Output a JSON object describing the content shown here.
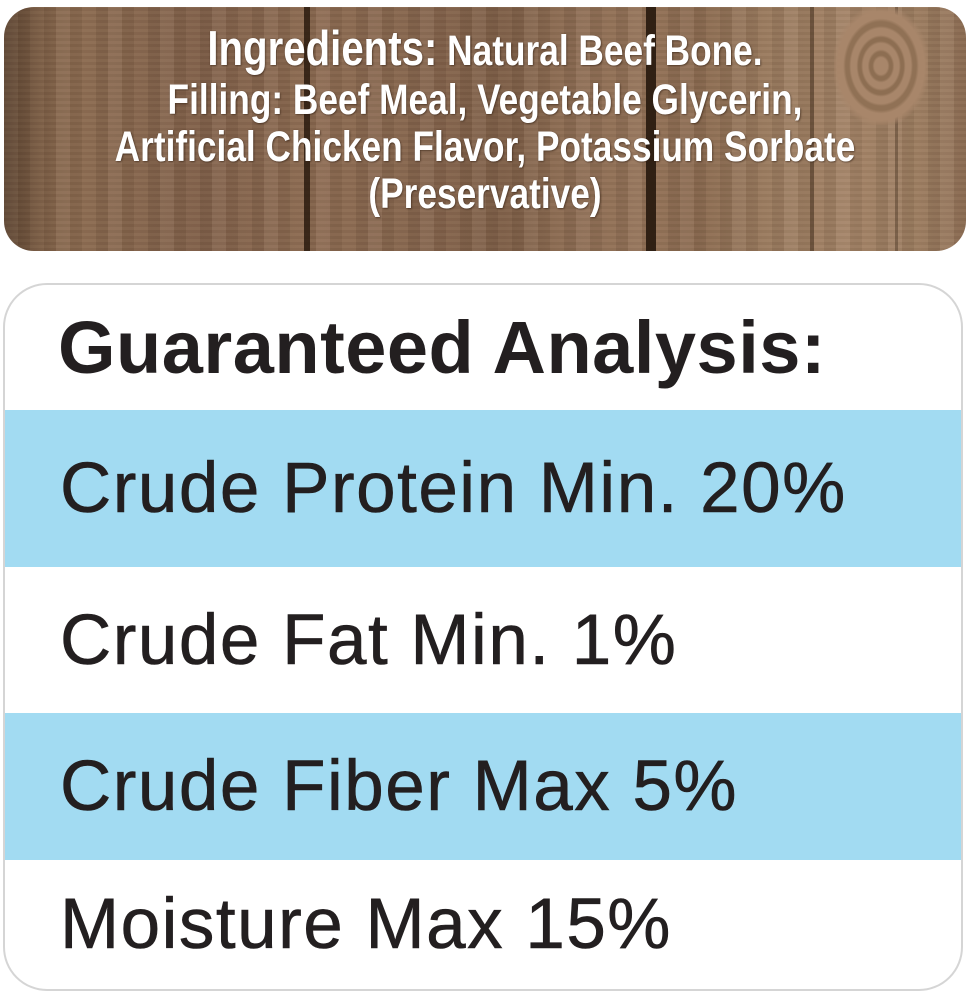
{
  "ingredients_panel": {
    "line1_label": "Ingredients:",
    "line1_text": "Natural Beef Bone.",
    "line2": "Filling: Beef Meal, Vegetable Glycerin,",
    "line3": "Artificial Chicken Flavor, Potassium Sorbate",
    "line4": "(Preservative)"
  },
  "analysis_panel": {
    "title": "Guaranteed Analysis:",
    "rows": [
      {
        "label": "Crude Protein Min. 20%",
        "highlighted": true
      },
      {
        "label": "Crude Fat Min. 1%",
        "highlighted": false
      },
      {
        "label": "Crude Fiber Max 5%",
        "highlighted": true
      },
      {
        "label": "Moisture Max 15%",
        "highlighted": false
      }
    ]
  },
  "colors": {
    "stripe_blue": "#a2dbf2",
    "wood_brown": "#8b6a50",
    "text_dark": "#231f20",
    "text_white": "#ffffff",
    "card_border": "#d5d5d5"
  }
}
